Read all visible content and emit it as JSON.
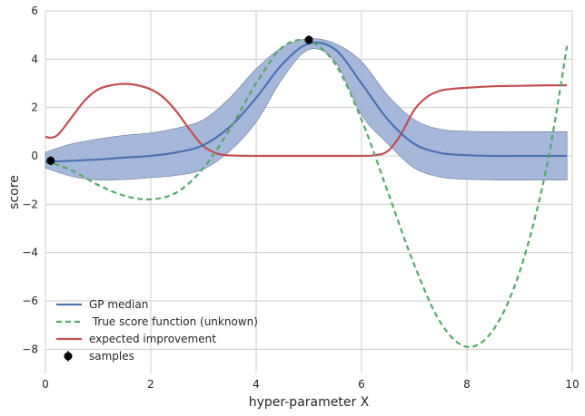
{
  "chart_data": {
    "type": "line",
    "xlabel": "hyper-parameter X",
    "ylabel": "score",
    "xlim": [
      0,
      10
    ],
    "ylim": [
      -9,
      6
    ],
    "xticks": [
      0,
      2,
      4,
      6,
      8,
      10
    ],
    "yticks": [
      -8,
      -6,
      -4,
      -2,
      0,
      2,
      4,
      6
    ],
    "grid": true,
    "legend_position": "bottom-left",
    "series": [
      {
        "name": "GP median",
        "color": "#4c72b0",
        "x": [
          0,
          0.5,
          1,
          1.5,
          2,
          2.5,
          3,
          3.5,
          4,
          4.5,
          5,
          5.5,
          6,
          6.5,
          7,
          7.5,
          8,
          8.5,
          9,
          9.5,
          9.9
        ],
        "y": [
          -0.25,
          -0.2,
          -0.15,
          -0.07,
          0.0,
          0.15,
          0.45,
          1.2,
          2.4,
          3.8,
          4.65,
          4.4,
          3.0,
          1.5,
          0.5,
          0.12,
          0.03,
          0.0,
          0.0,
          0.0,
          0.0
        ]
      },
      {
        "name": "GP confidence band upper",
        "color": "#a1b4d8",
        "x": [
          0,
          0.5,
          1,
          1.5,
          2,
          2.5,
          3,
          3.5,
          4,
          4.5,
          5,
          5.5,
          6,
          6.5,
          7,
          7.5,
          8,
          8.5,
          9,
          9.5,
          9.9
        ],
        "y": [
          0.15,
          0.5,
          0.7,
          0.85,
          0.95,
          1.15,
          1.5,
          2.4,
          3.6,
          4.5,
          4.85,
          4.65,
          3.9,
          2.5,
          1.5,
          1.1,
          1.02,
          1.0,
          1.0,
          1.0,
          1.0
        ]
      },
      {
        "name": "GP confidence band lower",
        "color": "#a1b4d8",
        "x": [
          0,
          0.5,
          1,
          1.5,
          2,
          2.5,
          3,
          3.5,
          4,
          4.5,
          5,
          5.5,
          6,
          6.5,
          7,
          7.5,
          8,
          8.5,
          9,
          9.5,
          9.9
        ],
        "y": [
          -0.5,
          -0.85,
          -1.0,
          -0.98,
          -0.9,
          -0.8,
          -0.55,
          0.2,
          1.4,
          3.2,
          4.4,
          3.9,
          1.7,
          0.5,
          -0.5,
          -0.88,
          -0.97,
          -1.0,
          -1.0,
          -1.0,
          -1.0
        ]
      },
      {
        "name": " True score function (unknown)",
        "color": "#55a868",
        "x": [
          0,
          0.5,
          1,
          1.5,
          2,
          2.5,
          3,
          3.5,
          4,
          4.5,
          5,
          5.5,
          6,
          6.5,
          7,
          7.5,
          8,
          8.5,
          9,
          9.5,
          9.9
        ],
        "y": [
          -0.2,
          -0.6,
          -1.2,
          -1.65,
          -1.8,
          -1.5,
          -0.5,
          1.1,
          3.0,
          4.5,
          4.75,
          3.8,
          1.5,
          -1.5,
          -4.5,
          -6.9,
          -7.9,
          -7.2,
          -4.8,
          -0.6,
          4.55
        ]
      },
      {
        "name": "expected improvement",
        "color": "#c44e52",
        "x": [
          0,
          0.1,
          0.25,
          0.5,
          0.75,
          1,
          1.25,
          1.5,
          1.75,
          2,
          2.25,
          2.5,
          2.75,
          3,
          3.25,
          3.5,
          4,
          5,
          6,
          6.25,
          6.5,
          6.75,
          7,
          7.25,
          7.5,
          7.75,
          8,
          8.5,
          9,
          9.5,
          9.9
        ],
        "y": [
          0.8,
          0.75,
          0.9,
          1.6,
          2.3,
          2.75,
          2.92,
          2.98,
          2.92,
          2.75,
          2.4,
          1.8,
          1.05,
          0.4,
          0.1,
          0.02,
          0.0,
          0.0,
          0.0,
          0.03,
          0.2,
          0.9,
          1.9,
          2.45,
          2.7,
          2.78,
          2.82,
          2.88,
          2.9,
          2.92,
          2.92
        ]
      },
      {
        "name": "samples",
        "color": "#000000",
        "x": [
          0.1,
          5.0
        ],
        "y": [
          -0.2,
          4.8
        ]
      }
    ]
  }
}
